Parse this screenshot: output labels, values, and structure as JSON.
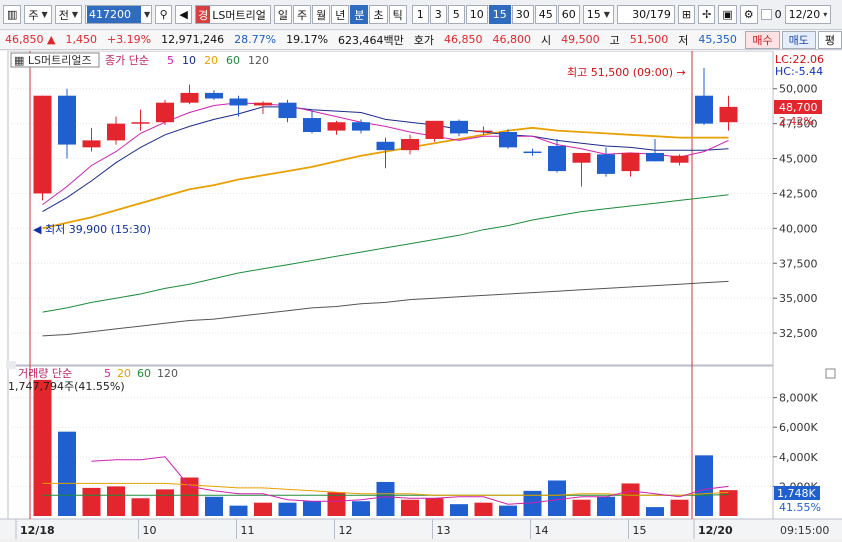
{
  "toolbar": {
    "market_label": "주",
    "price_type_label": "전",
    "stock_code": "417200",
    "stock_tag": "경",
    "stock_name": "LS머트리얼",
    "period_buttons": [
      "일",
      "주",
      "월",
      "년",
      "분",
      "초",
      "틱"
    ],
    "active_period": "분",
    "interval_buttons": [
      "1",
      "3",
      "5",
      "10",
      "15",
      "30",
      "45",
      "60"
    ],
    "active_interval": "15",
    "interval_select": "15",
    "page_counter": "30/179",
    "date_checkbox_label": "0",
    "date_value": "12/20"
  },
  "quote": {
    "price": "46,850",
    "change": "1,450",
    "change_pct": "+3.19%",
    "volume": "12,971,246",
    "turnover_pct": "28.77%",
    "vol_ratio": "19.17%",
    "amount": "623,464백만",
    "ask_label": "호가",
    "ask1": "46,850",
    "ask2": "46,800",
    "open_label": "시",
    "open": "49,500",
    "high_label": "고",
    "high": "51,500",
    "low_label": "저",
    "low": "45,350",
    "buy_label": "매수",
    "sell_label": "매도",
    "eval_label": "평"
  },
  "price_panel": {
    "stock_label": "LS머트리얼즈",
    "ma_label": "종가 단순",
    "ma_periods": [
      "5",
      "10",
      "20",
      "60",
      "120"
    ],
    "ma_colors": [
      "#d020b0",
      "#1a2a8c",
      "#e8a000",
      "#1e8c3a",
      "#555555"
    ],
    "lc_text": "LC:22.06",
    "hc_text": "HC:-5.44",
    "current_price_label": "48,700",
    "current_pct_label": "2.42%",
    "high_annotation": "최고 51,500 (09:00)",
    "low_annotation": "최저 39,900 (15:30)"
  },
  "volume_panel": {
    "label": "거래량",
    "ma_label": "단순",
    "ma_periods": [
      "5",
      "20",
      "60",
      "120"
    ],
    "volume_text": "1,747,794주(41.55%)",
    "current_volume_label": "1,748K",
    "current_pct_label": "41.55%"
  },
  "colors": {
    "up": "#e3262d",
    "down": "#1f5fd0"
  },
  "x_labels": [
    {
      "index": 0,
      "label": "12/18"
    },
    {
      "index": 5,
      "label": "10"
    },
    {
      "index": 9,
      "label": "11"
    },
    {
      "index": 13,
      "label": "12"
    },
    {
      "index": 17,
      "label": "13"
    },
    {
      "index": 21,
      "label": "14"
    },
    {
      "index": 25,
      "label": "15"
    },
    {
      "index": 28,
      "label": "12/20"
    }
  ],
  "time_label": "09:15:00",
  "chart_data": {
    "type": "candlestick",
    "price_axis": {
      "ticks": [
        32500,
        35000,
        37500,
        40000,
        42500,
        45000,
        47500,
        50000
      ],
      "range": [
        30500,
        52200
      ]
    },
    "volume_axis": {
      "ticks": [
        2000,
        4000,
        6000,
        8000
      ],
      "unit": "K",
      "range": [
        0,
        9800
      ]
    },
    "candles": [
      {
        "o": 39900,
        "h": 39900,
        "l": 39900,
        "c": 39900,
        "v": 0
      },
      {
        "o": 42500,
        "h": 49500,
        "l": 42000,
        "c": 49500,
        "v": 9200
      },
      {
        "o": 49500,
        "h": 50000,
        "l": 45000,
        "c": 46000,
        "v": 5700
      },
      {
        "o": 45800,
        "h": 47200,
        "l": 45500,
        "c": 46300,
        "v": 1900
      },
      {
        "o": 46300,
        "h": 48000,
        "l": 46000,
        "c": 47500,
        "v": 2000
      },
      {
        "o": 47500,
        "h": 48500,
        "l": 47000,
        "c": 47600,
        "v": 1200
      },
      {
        "o": 47600,
        "h": 49200,
        "l": 47400,
        "c": 49000,
        "v": 1800
      },
      {
        "o": 49000,
        "h": 50300,
        "l": 48900,
        "c": 49700,
        "v": 2600
      },
      {
        "o": 49700,
        "h": 49900,
        "l": 49200,
        "c": 49300,
        "v": 1300
      },
      {
        "o": 49300,
        "h": 49500,
        "l": 48000,
        "c": 48800,
        "v": 700
      },
      {
        "o": 48800,
        "h": 49100,
        "l": 48200,
        "c": 49000,
        "v": 900
      },
      {
        "o": 49000,
        "h": 49200,
        "l": 47600,
        "c": 47900,
        "v": 900
      },
      {
        "o": 47900,
        "h": 48500,
        "l": 46800,
        "c": 46900,
        "v": 1000
      },
      {
        "o": 47000,
        "h": 47700,
        "l": 46700,
        "c": 47600,
        "v": 1600
      },
      {
        "o": 47600,
        "h": 47800,
        "l": 46800,
        "c": 47000,
        "v": 1000
      },
      {
        "o": 46200,
        "h": 46500,
        "l": 44300,
        "c": 45600,
        "v": 2300
      },
      {
        "o": 45600,
        "h": 46700,
        "l": 45300,
        "c": 46400,
        "v": 1100
      },
      {
        "o": 46400,
        "h": 47700,
        "l": 46200,
        "c": 47700,
        "v": 1200
      },
      {
        "o": 47700,
        "h": 47800,
        "l": 46600,
        "c": 46800,
        "v": 800
      },
      {
        "o": 46900,
        "h": 47300,
        "l": 46700,
        "c": 47000,
        "v": 900
      },
      {
        "o": 46900,
        "h": 47100,
        "l": 45700,
        "c": 45800,
        "v": 700
      },
      {
        "o": 45500,
        "h": 45700,
        "l": 45200,
        "c": 45400,
        "v": 1700
      },
      {
        "o": 45900,
        "h": 46400,
        "l": 44000,
        "c": 44100,
        "v": 2400
      },
      {
        "o": 44700,
        "h": 45400,
        "l": 43000,
        "c": 45400,
        "v": 1100
      },
      {
        "o": 45300,
        "h": 45800,
        "l": 43700,
        "c": 43900,
        "v": 1300
      },
      {
        "o": 44100,
        "h": 45400,
        "l": 43700,
        "c": 45400,
        "v": 2200
      },
      {
        "o": 45400,
        "h": 46400,
        "l": 44800,
        "c": 44800,
        "v": 600
      },
      {
        "o": 44700,
        "h": 45300,
        "l": 44500,
        "c": 45200,
        "v": 1100
      },
      {
        "o": 49500,
        "h": 51500,
        "l": 47400,
        "c": 47500,
        "v": 4100
      },
      {
        "o": 47600,
        "h": 49500,
        "l": 47000,
        "c": 48700,
        "v": 1748
      }
    ],
    "ma5": [
      null,
      41700,
      43000,
      44500,
      45500,
      46800,
      47600,
      48300,
      48800,
      49000,
      48900,
      48800,
      48400,
      48000,
      47600,
      47300,
      46900,
      46600,
      46300,
      46600,
      46600,
      46600,
      46000,
      45700,
      45300,
      45400,
      45300,
      45100,
      45500,
      46300
    ],
    "ma10": [
      null,
      41200,
      42200,
      43400,
      44700,
      45800,
      46700,
      47300,
      47800,
      48200,
      48700,
      48700,
      48500,
      48400,
      48300,
      47800,
      47600,
      47400,
      47100,
      46900,
      46700,
      46600,
      46300,
      46100,
      45900,
      45800,
      45600,
      45600,
      45600,
      45700
    ],
    "ma20": [
      null,
      40000,
      40400,
      40800,
      41300,
      41800,
      42300,
      42800,
      43100,
      43500,
      43800,
      44100,
      44400,
      44800,
      45200,
      45500,
      45800,
      46100,
      46400,
      46700,
      47000,
      47200,
      47000,
      46900,
      46800,
      46700,
      46600,
      46500,
      46500,
      46500
    ],
    "ma60": [
      null,
      34000,
      34300,
      34700,
      35000,
      35300,
      35700,
      36000,
      36400,
      36800,
      37100,
      37400,
      37700,
      38000,
      38300,
      38600,
      38900,
      39200,
      39500,
      39900,
      40200,
      40600,
      40900,
      41200,
      41400,
      41600,
      41800,
      42000,
      42200,
      42400
    ],
    "ma120": [
      null,
      32300,
      32400,
      32600,
      32800,
      33000,
      33200,
      33400,
      33500,
      33700,
      33900,
      34100,
      34300,
      34400,
      34600,
      34700,
      34900,
      35000,
      35100,
      35200,
      35300,
      35400,
      35500,
      35600,
      35700,
      35800,
      35900,
      36000,
      36100,
      36200
    ],
    "vol_ma5": [
      null,
      null,
      null,
      3700,
      3800,
      3800,
      4000,
      2000,
      1700,
      1500,
      1500,
      1100,
      1000,
      1000,
      1100,
      1300,
      1200,
      1200,
      1300,
      1300,
      800,
      900,
      1100,
      1300,
      1300,
      1700,
      1500,
      1300,
      1800,
      2000
    ],
    "vol_ma20": [
      null,
      2200,
      2200,
      2200,
      2200,
      2200,
      2200,
      2100,
      2000,
      1900,
      1900,
      1800,
      1700,
      1600,
      1500,
      1500,
      1500,
      1400,
      1400,
      1400,
      1400,
      1400,
      1400,
      1500,
      1500,
      1400,
      1400,
      1400,
      1500,
      1600
    ],
    "vol_ma60": [
      null,
      1400,
      1400,
      1400,
      1400,
      1400,
      1400,
      1400,
      1400,
      1400,
      1400,
      1400,
      1400,
      1400,
      1400,
      1400,
      1400,
      1400,
      1400,
      1400,
      1400,
      1400,
      1400,
      1400,
      1400,
      1400,
      1400,
      1400,
      1400,
      1450
    ]
  }
}
